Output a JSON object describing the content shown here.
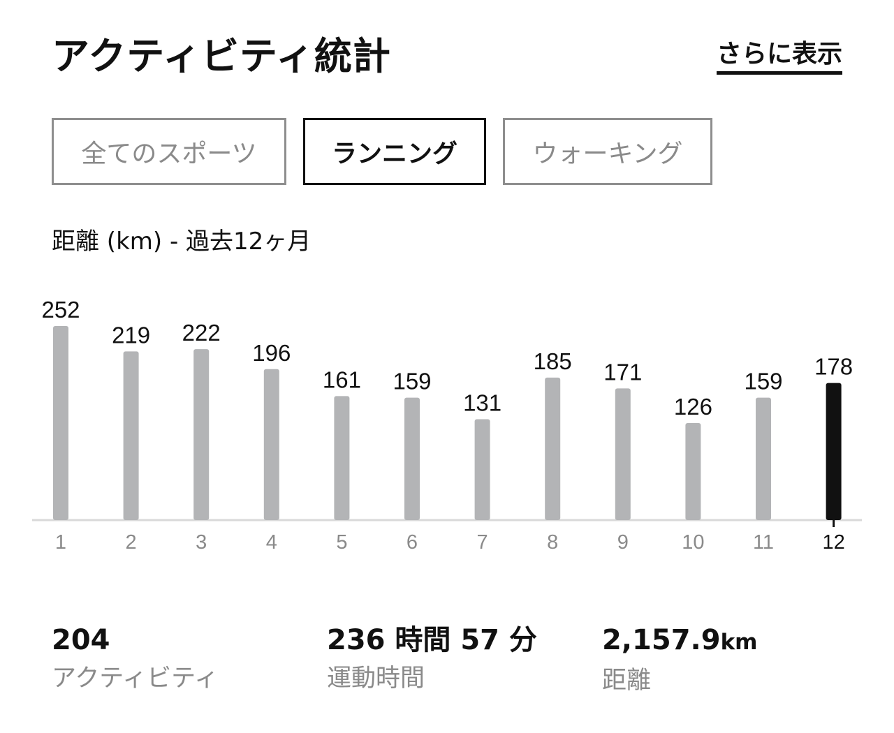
{
  "header": {
    "title": "アクティビティ統計",
    "more_link": "さらに表示"
  },
  "tabs": [
    {
      "label": "全てのスポーツ",
      "active": false
    },
    {
      "label": "ランニング",
      "active": true
    },
    {
      "label": "ウォーキング",
      "active": false
    }
  ],
  "chart_label": "距離 (km) - 過去12ヶ月",
  "colors": {
    "bar": "#b3b4b6",
    "bar_selected": "#111111",
    "axis": "#d9d9d9",
    "tick_label": "#8a8a8a",
    "tick_label_selected": "#111111"
  },
  "chart_data": {
    "type": "bar",
    "categories": [
      "1",
      "2",
      "3",
      "4",
      "5",
      "6",
      "7",
      "8",
      "9",
      "10",
      "11",
      "12"
    ],
    "values": [
      252,
      219,
      222,
      196,
      161,
      159,
      131,
      185,
      171,
      126,
      159,
      178
    ],
    "selected_category": "12",
    "title": "距離 (km) - 過去12ヶ月",
    "xlabel": "",
    "ylabel": "",
    "ylim": [
      0,
      252
    ],
    "grid": false,
    "legend": "none"
  },
  "stats": [
    {
      "value": "204",
      "unit": "",
      "label": "アクティビティ"
    },
    {
      "value": "236 時間 57 分",
      "unit": "",
      "label": "運動時間"
    },
    {
      "value": "2,157.9",
      "unit": "km",
      "label": "距離"
    }
  ]
}
